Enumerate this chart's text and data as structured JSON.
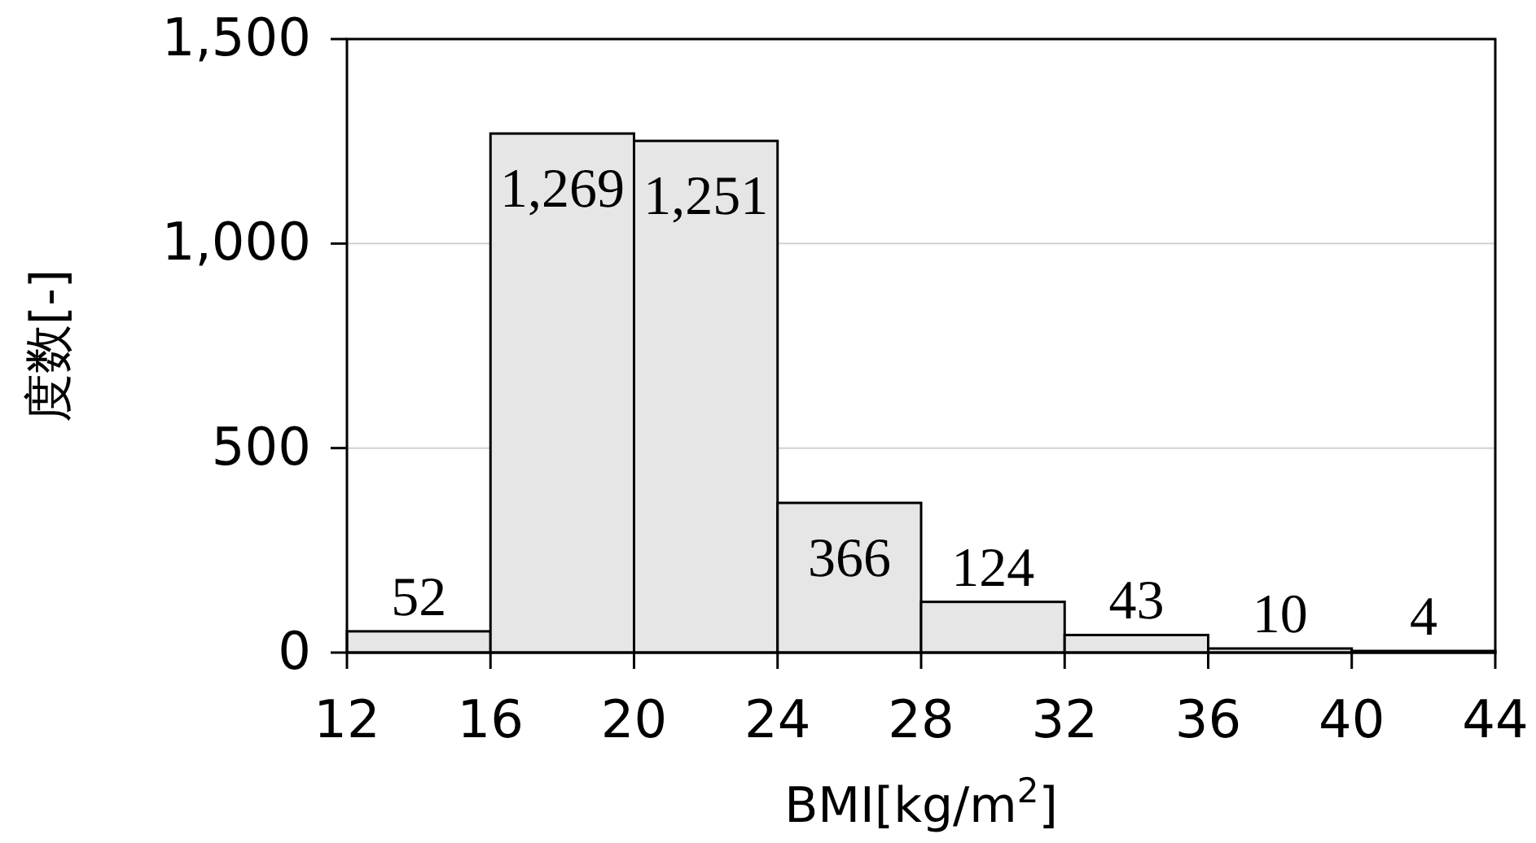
{
  "chart_data": {
    "type": "histogram",
    "xlabel": "BMI[kg/m$^{2}$]",
    "ylabel": "度数[-]",
    "bins": [
      12,
      16,
      20,
      24,
      28,
      32,
      36,
      40,
      44
    ],
    "values": [
      52,
      1269,
      1251,
      366,
      124,
      43,
      10,
      4
    ],
    "value_labels": [
      "52",
      "1,269",
      "1,251",
      "366",
      "124",
      "43",
      "10",
      "4"
    ],
    "color": "#e6e6e6",
    "xlim": [
      12,
      44
    ],
    "xticks": [
      12,
      16,
      20,
      24,
      28,
      32,
      36,
      40,
      44
    ],
    "ylim": [
      0,
      1500
    ],
    "yticks": [
      0,
      500,
      {
        "value": 1000,
        "label": "1,000"
      },
      {
        "value": 1500,
        "label": "1,500"
      }
    ],
    "grid": "y"
  }
}
